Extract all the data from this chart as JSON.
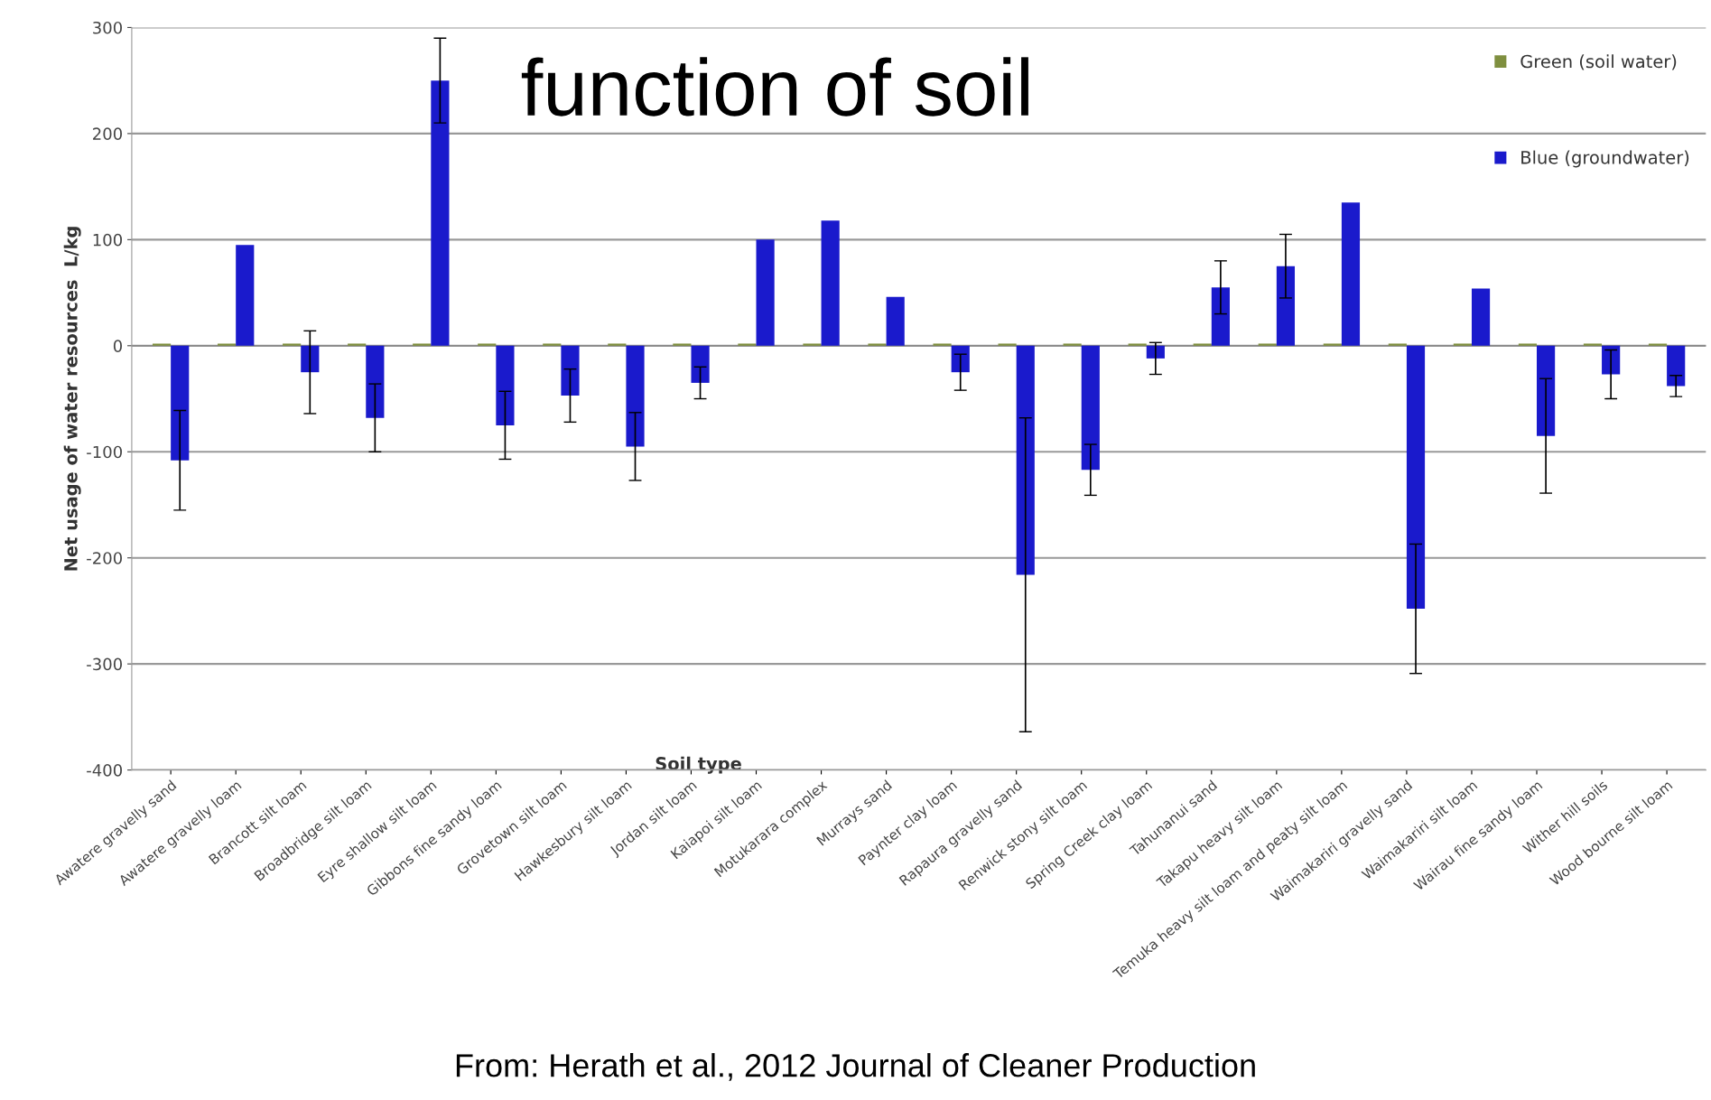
{
  "chart_data": {
    "type": "bar",
    "title": "function of soil",
    "xlabel": "Soil type",
    "ylabel": "Net usage of water resources  L/kg",
    "annotations": [
      "From: Herath et al., 2012 Journal of Cleaner Production"
    ],
    "categories": [
      "Awatere gravelly sand",
      "Awatere gravelly loam",
      "Brancott silt loam",
      "Broadbridge silt loam",
      "Eyre shallow silt loam",
      "Gibbons fine sandy loam",
      "Grovetown silt loam",
      "Hawkesbury silt loam",
      "Jordan silt loam",
      "Kaiapoi silt loam",
      "Motukarara complex",
      "Murrays sand",
      "Paynter clay loam",
      "Rapaura gravelly sand",
      "Renwick stony silt loam",
      "Spring Creek clay loam",
      "Tahunanui sand",
      "Takapu heavy silt loam",
      "Temuka heavy silt loam and peaty silt loam",
      "Waimakariri gravelly sand",
      "Waimakariri silt loam",
      "Wairau fine sandy loam",
      "Wither hill soils",
      "Wood bourne silt loam"
    ],
    "series": [
      {
        "name": "Green (soil water)",
        "color": "#7f8f3f",
        "values": [
          2,
          2,
          2,
          2,
          2,
          2,
          2,
          2,
          2,
          2,
          2,
          2,
          2,
          2,
          2,
          2,
          2,
          2,
          2,
          2,
          2,
          2,
          2,
          2
        ]
      },
      {
        "name": "Blue (groundwater)",
        "color": "#1a1acc",
        "values": [
          -108,
          95,
          -25,
          -68,
          250,
          -75,
          -47,
          -95,
          -35,
          100,
          118,
          46,
          -25,
          -216,
          -117,
          -12,
          55,
          75,
          135,
          -248,
          54,
          -85,
          -27,
          -38
        ],
        "errors": [
          47,
          null,
          39,
          32,
          40,
          32,
          25,
          32,
          15,
          null,
          null,
          null,
          17,
          148,
          24,
          15,
          25,
          30,
          null,
          61,
          null,
          54,
          23,
          10
        ]
      }
    ],
    "ylim": [
      -400,
      300
    ],
    "yticks": [
      -400,
      -300,
      -200,
      -100,
      0,
      100,
      200,
      300
    ],
    "grid": "y",
    "legend": "top right"
  }
}
